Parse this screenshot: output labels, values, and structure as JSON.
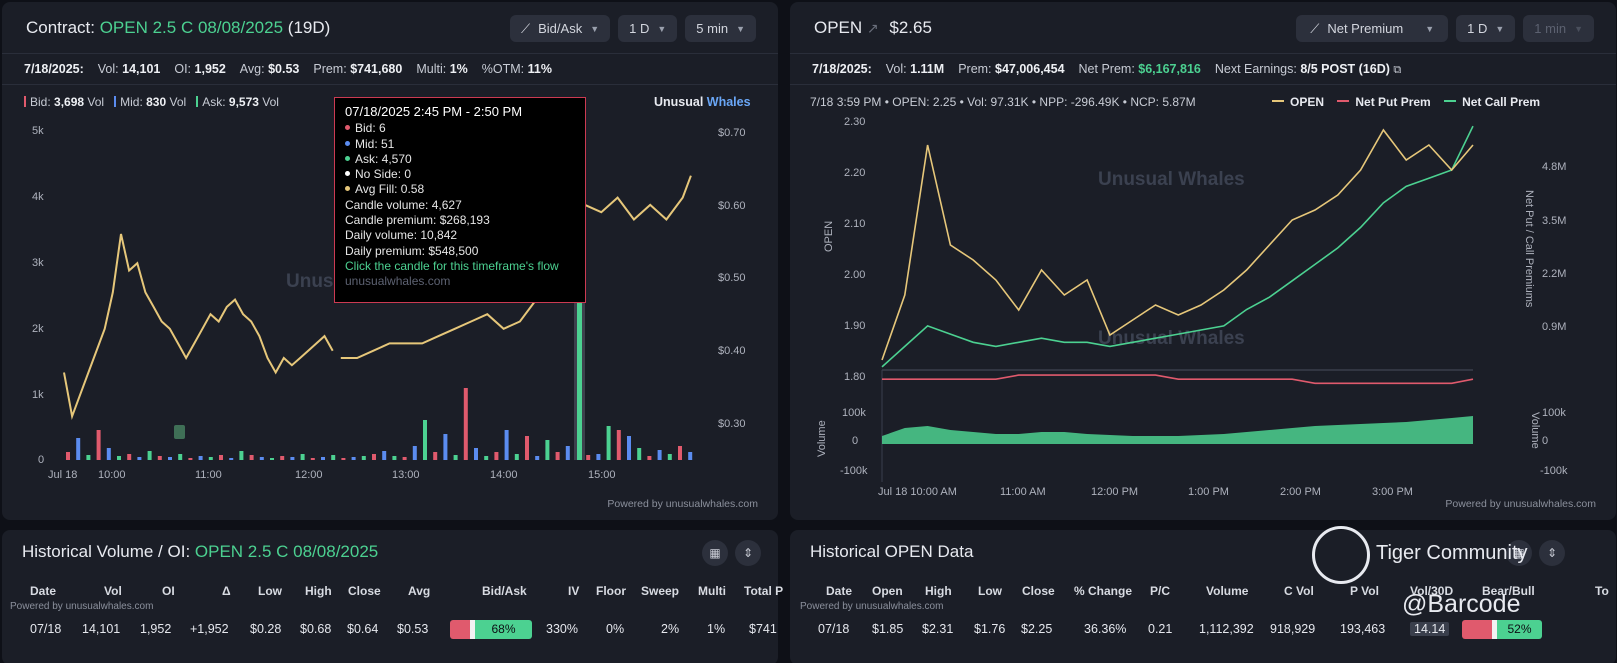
{
  "left": {
    "header": {
      "title_prefix": "Contract: ",
      "contract": "OPEN 2.5 C 08/08/2025",
      "days": "(19D)"
    },
    "controls": [
      {
        "label": "Bid/Ask",
        "icon": "chart-icon"
      },
      {
        "label": "1 D"
      },
      {
        "label": "5 min"
      }
    ],
    "stats": [
      {
        "label": "7/18/2025:",
        "value": ""
      },
      {
        "label": "Vol:",
        "value": "14,101"
      },
      {
        "label": "OI:",
        "value": "1,952"
      },
      {
        "label": "Avg:",
        "value": "$0.53"
      },
      {
        "label": "Prem:",
        "value": "$741,680"
      },
      {
        "label": "Multi:",
        "value": "1%"
      },
      {
        "label": "%OTM:",
        "value": "11%"
      }
    ],
    "legend": {
      "bid_label": "Bid:",
      "bid": "3,698",
      "mid_label": "Mid:",
      "mid": "830",
      "ask_label": "Ask:",
      "ask": "9,573",
      "unit": "Vol"
    },
    "brand": {
      "a": "Unusual ",
      "b": "Whales"
    },
    "watermark": "Unusual Whales",
    "powered": "Powered by unusualwhales.com",
    "tooltip": {
      "time": "07/18/2025 2:45 PM - 2:50 PM",
      "bid": "Bid: 6",
      "mid": "Mid: 51",
      "ask": "Ask: 4,570",
      "noside": "No Side: 0",
      "avgfill": "Avg Fill: 0.58",
      "candle_volume": "Candle volume: 4,627",
      "candle_premium": "Candle premium: $268,193",
      "daily_volume": "Daily volume: 10,842",
      "daily_premium": "Daily premium: $548,500",
      "cta": "Click the candle for this timeframe's flow",
      "site": "unusualwhales.com"
    }
  },
  "right": {
    "header": {
      "ticker": "OPEN",
      "price": "$2.65"
    },
    "controls": [
      {
        "label": "Net Premium",
        "icon": "chart-icon"
      },
      {
        "label": "1 D"
      },
      {
        "label": "1 min",
        "disabled": true
      }
    ],
    "stats": [
      {
        "label": "7/18/2025:",
        "value": ""
      },
      {
        "label": "Vol:",
        "value": "1.11M"
      },
      {
        "label": "Prem:",
        "value": "$47,006,454"
      },
      {
        "label": "Net Prem:",
        "value": "$6,167,816",
        "positive": true
      },
      {
        "label": "Next Earnings:",
        "value": "8/5 POST (16D)"
      }
    ],
    "info": "7/18 3:59 PM • OPEN: 2.25 • Vol: 97.31K • NPP: -296.49K • NCP: 5.87M",
    "legend": [
      "OPEN",
      "Net Put Prem",
      "Net Call Prem"
    ],
    "watermark": "Unusual Whales",
    "powered": "Powered by unusualwhales.com",
    "axis_labels": {
      "left": "OPEN",
      "right": "Net Put / Call Premiums",
      "vol_left": "Volume",
      "vol_right": "Volume"
    }
  },
  "hist_left": {
    "title_prefix": "Historical Volume / OI: ",
    "contract": "OPEN 2.5 C 08/08/2025",
    "columns": [
      "Date",
      "Vol",
      "OI",
      "Δ",
      "Low",
      "High",
      "Close",
      "Avg",
      "Bid/Ask",
      "IV",
      "Floor",
      "Sweep",
      "Multi",
      "Total P"
    ],
    "row": [
      "07/18",
      "14,101",
      "1,952",
      "+1,952",
      "$0.28",
      "$0.68",
      "$0.64",
      "$0.53",
      "68%",
      "330%",
      "0%",
      "2%",
      "1%",
      "$741"
    ],
    "powered": "Powered by unusualwhales.com"
  },
  "hist_right": {
    "title": "Historical OPEN Data",
    "columns": [
      "Date",
      "Open",
      "High",
      "Low",
      "Close",
      "% Change",
      "P/C",
      "Volume",
      "C Vol",
      "P Vol",
      "Vol/30D",
      "Bear/Bull",
      "To"
    ],
    "row": [
      "07/18",
      "$1.85",
      "$2.31",
      "$1.76",
      "$2.25",
      "36.36%",
      "0.21",
      "1,112,392",
      "918,929",
      "193,463",
      "14.14",
      "52%"
    ],
    "powered": "Powered by unusualwhales.com"
  },
  "overlay": {
    "community": "Tiger Community",
    "handle": "@Barcode"
  },
  "chart_data": [
    {
      "type": "line",
      "title": "",
      "x_ticks": [
        "Jul 18",
        "10:00",
        "11:00",
        "12:00",
        "13:00",
        "14:00",
        "15:00"
      ],
      "y_left_ticks": [
        "5k",
        "4k",
        "3k",
        "2k",
        "1k",
        "0"
      ],
      "y_right_ticks": [
        "$0.70",
        "$0.60",
        "$0.50",
        "$0.40",
        "$0.30"
      ],
      "ylim_left": [
        0,
        5000
      ],
      "ylim_right": [
        0.25,
        0.7
      ],
      "series": [
        {
          "name": "Avg Fill",
          "x": [
            "9:30",
            "9:35",
            "9:45",
            "9:55",
            "10:00",
            "10:05",
            "10:10",
            "10:15",
            "10:20",
            "10:25",
            "10:30",
            "10:35",
            "10:40",
            "10:45",
            "10:50",
            "10:55",
            "11:00",
            "11:05",
            "11:10",
            "11:15",
            "11:20",
            "11:25",
            "11:30",
            "11:35",
            "11:40",
            "11:45",
            "11:50",
            "11:55",
            "12:00",
            "12:05",
            "12:10",
            "12:15"
          ],
          "values": [
            0.37,
            0.31,
            0.37,
            0.43,
            0.48,
            0.56,
            0.51,
            0.52,
            0.48,
            0.46,
            0.44,
            0.43,
            0.41,
            0.39,
            0.41,
            0.43,
            0.45,
            0.44,
            0.46,
            0.47,
            0.45,
            0.44,
            0.42,
            0.39,
            0.37,
            0.39,
            0.38,
            0.39,
            0.4,
            0.41,
            0.42,
            0.4
          ]
        },
        {
          "name": "Avg Fill (pm)",
          "x": [
            "12:20",
            "12:30",
            "12:40",
            "12:50",
            "13:00",
            "13:10",
            "13:20",
            "13:30",
            "13:40",
            "13:50",
            "14:00",
            "14:10",
            "14:20",
            "14:30",
            "14:40",
            "14:45",
            "14:50",
            "15:00",
            "15:10",
            "15:20",
            "15:30",
            "15:40",
            "15:50",
            "15:55"
          ],
          "values": [
            0.39,
            0.39,
            0.4,
            0.41,
            0.41,
            0.41,
            0.42,
            0.43,
            0.44,
            0.45,
            0.43,
            0.44,
            0.47,
            0.5,
            0.53,
            0.58,
            0.6,
            0.59,
            0.61,
            0.58,
            0.6,
            0.58,
            0.61,
            0.64
          ]
        }
      ]
    },
    {
      "type": "line",
      "title": "",
      "x_ticks": [
        "Jul 18 10:00 AM",
        "11:00 AM",
        "12:00 PM",
        "1:00 PM",
        "2:00 PM",
        "3:00 PM"
      ],
      "y_left_ticks": [
        "2.30",
        "2.20",
        "2.10",
        "2.00",
        "1.90",
        "1.80"
      ],
      "y_right_ticks": [
        "4.8M",
        "3.5M",
        "2.2M",
        "0.9M"
      ],
      "volume_ticks": [
        "100k",
        "0",
        "-100k"
      ],
      "ylim_left": [
        1.78,
        2.3
      ],
      "series": [
        {
          "name": "OPEN",
          "x": [
            "9:30",
            "9:45",
            "10:00",
            "10:15",
            "10:30",
            "10:45",
            "11:00",
            "11:15",
            "11:30",
            "11:45",
            "12:00",
            "12:15",
            "12:30",
            "12:45",
            "13:00",
            "13:15",
            "13:30",
            "13:45",
            "14:00",
            "14:15",
            "14:30",
            "14:45",
            "15:00",
            "15:15",
            "15:30",
            "15:45",
            "15:59"
          ],
          "values": [
            1.82,
            1.95,
            2.25,
            2.05,
            2.02,
            1.98,
            1.92,
            2.0,
            1.95,
            1.98,
            1.87,
            1.9,
            1.93,
            1.91,
            1.93,
            1.96,
            2.0,
            2.05,
            2.1,
            2.12,
            2.15,
            2.2,
            2.28,
            2.22,
            2.25,
            2.2,
            2.25
          ]
        },
        {
          "name": "Net Put Prem",
          "values": [
            -0.3,
            -0.3,
            -0.3,
            -0.3,
            -0.3,
            -0.3,
            -0.2,
            -0.2,
            -0.2,
            -0.2,
            -0.2,
            -0.2,
            -0.2,
            -0.3,
            -0.3,
            -0.3,
            -0.3,
            -0.3,
            -0.3,
            -0.4,
            -0.4,
            -0.4,
            -0.4,
            -0.4,
            -0.4,
            -0.4,
            -0.3
          ]
        },
        {
          "name": "Net Call Prem",
          "values": [
            0.0,
            0.5,
            1.0,
            0.8,
            0.6,
            0.5,
            0.6,
            0.7,
            0.6,
            0.6,
            0.5,
            0.6,
            0.7,
            0.8,
            0.9,
            1.0,
            1.4,
            1.7,
            2.1,
            2.5,
            2.9,
            3.4,
            4.0,
            4.4,
            4.6,
            4.8,
            5.87
          ]
        }
      ]
    }
  ]
}
